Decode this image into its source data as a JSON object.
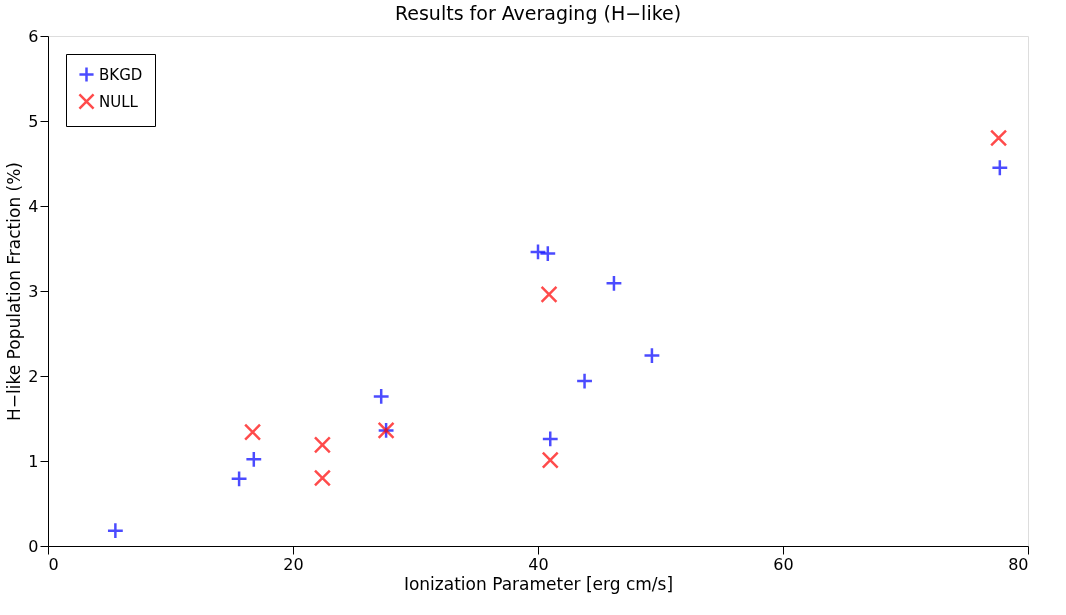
{
  "chart_data": {
    "type": "scatter",
    "title": "Results for Averaging (H−like)",
    "xlabel": "Ionization Parameter [erg cm/s]",
    "ylabel": "H−like Population Fraction (%)",
    "series": [
      {
        "name": "BKGD",
        "color": "#0000ff",
        "marker": "cross",
        "x": [
          5.5,
          15.6,
          16.8,
          27.2,
          27.6,
          40.0,
          40.8,
          41.0,
          43.8,
          46.2,
          49.3,
          77.7
        ],
        "values": [
          0.18,
          0.79,
          1.02,
          1.76,
          1.36,
          3.46,
          3.44,
          1.26,
          1.94,
          3.09,
          2.24,
          4.45
        ]
      },
      {
        "name": "NULL",
        "color": "#ff0000",
        "marker": "x",
        "x": [
          16.7,
          22.4,
          22.4,
          27.6,
          40.9,
          41.0,
          77.6
        ],
        "values": [
          1.34,
          1.19,
          0.8,
          1.36,
          2.96,
          1.01,
          4.8
        ]
      }
    ],
    "xlim": [
      0,
      80
    ],
    "xticks": [
      0,
      20,
      40,
      60,
      80
    ],
    "ylim": [
      0,
      6
    ],
    "yticks": [
      0,
      1,
      2,
      3,
      4,
      5,
      6
    ],
    "grid": false,
    "legend": "top left"
  }
}
